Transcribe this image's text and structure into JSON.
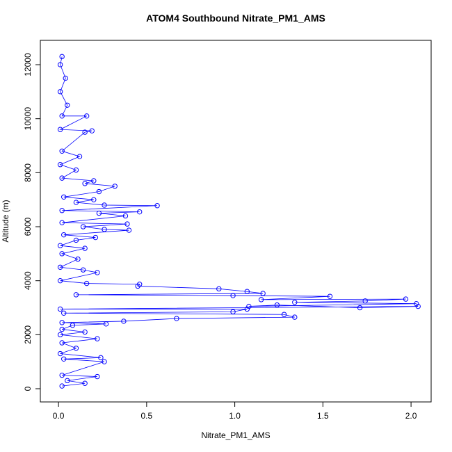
{
  "chart_data": {
    "type": "line",
    "markers": "circle",
    "title": "ATOM4 Southbound Nitrate_PM1_AMS",
    "x_label": "Nitrate_PM1_AMS",
    "y_label": "Altitude (m)",
    "color": "#0000ff",
    "xlim": [
      -0.103,
      2.114
    ],
    "ylim": [
      -489,
      12902
    ],
    "xticks": [
      {
        "value": 0,
        "label": "0.0"
      },
      {
        "value": 0.5,
        "label": "0.5"
      },
      {
        "value": 1,
        "label": "1.0"
      },
      {
        "value": 1.5,
        "label": "1.5"
      },
      {
        "value": 2,
        "label": "2.0"
      }
    ],
    "yticks": [
      0,
      2000,
      4000,
      6000,
      8000,
      10000,
      12000
    ],
    "x": [
      0.02,
      0.15,
      0.05,
      0.22,
      0.02,
      0.26,
      0.03,
      0.24,
      0.01,
      0.1,
      0.02,
      0.22,
      0.01,
      0.15,
      0.02,
      0.08,
      0.27,
      0.02,
      0.37,
      0.67,
      1.34,
      1.28,
      0.03,
      0.99,
      1.07,
      0.01,
      2.04,
      1.71,
      1.24,
      1.08,
      2.03,
      1.34,
      1.74,
      1.97,
      1.15,
      1.54,
      0.99,
      0.1,
      1.16,
      1.07,
      0.91,
      0.45,
      0.46,
      0.16,
      0.01,
      0.22,
      0.14,
      0.01,
      0.11,
      0.02,
      0.15,
      0.01,
      0.1,
      0.21,
      0.03,
      0.4,
      0.26,
      0.14,
      0.39,
      0.02,
      0.38,
      0.23,
      0.46,
      0.02,
      0.56,
      0.26,
      0.1,
      0.2,
      0.03,
      0.23,
      0.32,
      0.15,
      0.2,
      0.02,
      0.1,
      0.01,
      0.12,
      0.02,
      0.15,
      0.19,
      0.01,
      0.16,
      0.02,
      0.05,
      0.01,
      0.04,
      0.01,
      0.02
    ],
    "values": [
      100,
      200,
      300,
      450,
      500,
      1000,
      1100,
      1150,
      1300,
      1500,
      1700,
      1850,
      2000,
      2100,
      2200,
      2350,
      2400,
      2450,
      2500,
      2600,
      2650,
      2750,
      2800,
      2850,
      2950,
      2950,
      3050,
      3000,
      3100,
      3050,
      3150,
      3200,
      3250,
      3320,
      3300,
      3420,
      3450,
      3480,
      3530,
      3600,
      3700,
      3800,
      3870,
      3900,
      4000,
      4300,
      4400,
      4500,
      4800,
      5000,
      5200,
      5300,
      5500,
      5600,
      5700,
      5870,
      5900,
      6000,
      6100,
      6150,
      6400,
      6500,
      6550,
      6600,
      6780,
      6800,
      6900,
      7000,
      7100,
      7300,
      7500,
      7600,
      7700,
      7800,
      8100,
      8300,
      8600,
      8800,
      9500,
      9550,
      9600,
      10100,
      10100,
      10500,
      11000,
      11500,
      12000,
      12300
    ]
  }
}
